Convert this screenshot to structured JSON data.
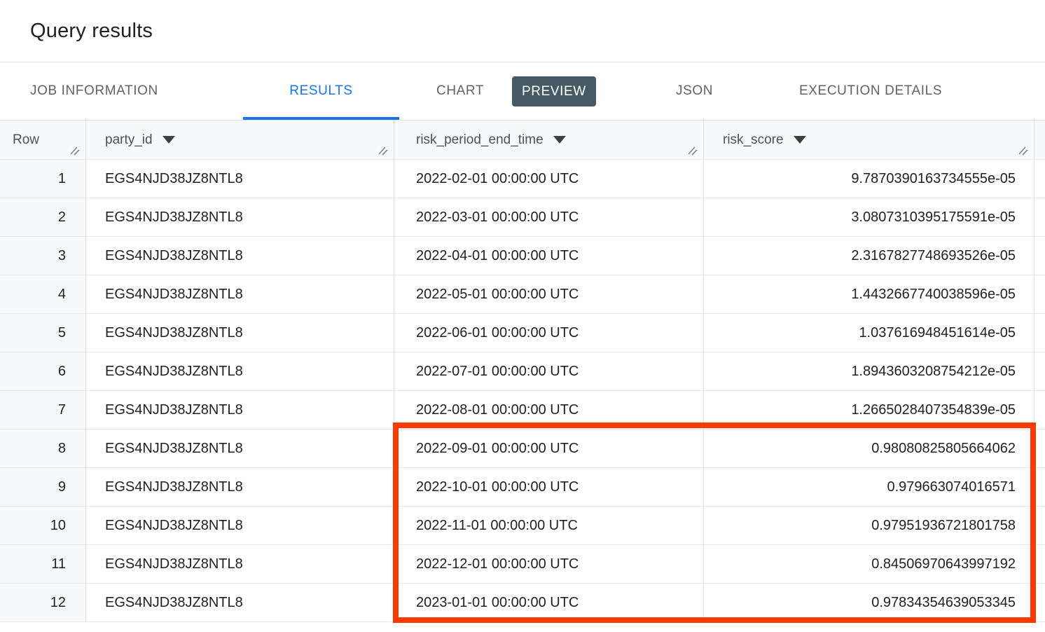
{
  "page": {
    "title": "Query results"
  },
  "tabs": [
    {
      "label": "JOB INFORMATION",
      "active": false
    },
    {
      "label": "RESULTS",
      "active": true
    },
    {
      "label": "CHART",
      "active": false,
      "badge": "PREVIEW"
    },
    {
      "label": "JSON",
      "active": false
    },
    {
      "label": "EXECUTION DETAILS",
      "active": false
    }
  ],
  "table": {
    "columns": [
      {
        "label": "Row",
        "sortable": false
      },
      {
        "label": "party_id",
        "sortable": true
      },
      {
        "label": "risk_period_end_time",
        "sortable": true
      },
      {
        "label": "risk_score",
        "sortable": true
      }
    ],
    "rows": [
      {
        "row": "1",
        "party_id": "EGS4NJD38JZ8NTL8",
        "risk_period_end_time": "2022-02-01 00:00:00 UTC",
        "risk_score": "9.7870390163734555e-05"
      },
      {
        "row": "2",
        "party_id": "EGS4NJD38JZ8NTL8",
        "risk_period_end_time": "2022-03-01 00:00:00 UTC",
        "risk_score": "3.0807310395175591e-05"
      },
      {
        "row": "3",
        "party_id": "EGS4NJD38JZ8NTL8",
        "risk_period_end_time": "2022-04-01 00:00:00 UTC",
        "risk_score": "2.3167827748693526e-05"
      },
      {
        "row": "4",
        "party_id": "EGS4NJD38JZ8NTL8",
        "risk_period_end_time": "2022-05-01 00:00:00 UTC",
        "risk_score": "1.4432667740038596e-05"
      },
      {
        "row": "5",
        "party_id": "EGS4NJD38JZ8NTL8",
        "risk_period_end_time": "2022-06-01 00:00:00 UTC",
        "risk_score": "1.037616948451614e-05"
      },
      {
        "row": "6",
        "party_id": "EGS4NJD38JZ8NTL8",
        "risk_period_end_time": "2022-07-01 00:00:00 UTC",
        "risk_score": "1.8943603208754212e-05"
      },
      {
        "row": "7",
        "party_id": "EGS4NJD38JZ8NTL8",
        "risk_period_end_time": "2022-08-01 00:00:00 UTC",
        "risk_score": "1.2665028407354839e-05"
      },
      {
        "row": "8",
        "party_id": "EGS4NJD38JZ8NTL8",
        "risk_period_end_time": "2022-09-01 00:00:00 UTC",
        "risk_score": "0.98080825805664062"
      },
      {
        "row": "9",
        "party_id": "EGS4NJD38JZ8NTL8",
        "risk_period_end_time": "2022-10-01 00:00:00 UTC",
        "risk_score": "0.979663074016571"
      },
      {
        "row": "10",
        "party_id": "EGS4NJD38JZ8NTL8",
        "risk_period_end_time": "2022-11-01 00:00:00 UTC",
        "risk_score": "0.97951936721801758"
      },
      {
        "row": "11",
        "party_id": "EGS4NJD38JZ8NTL8",
        "risk_period_end_time": "2022-12-01 00:00:00 UTC",
        "risk_score": "0.84506970643997192"
      },
      {
        "row": "12",
        "party_id": "EGS4NJD38JZ8NTL8",
        "risk_period_end_time": "2023-01-01 00:00:00 UTC",
        "risk_score": "0.97834354639053345"
      }
    ]
  },
  "annotation": {
    "color": "#fa3b00",
    "highlighted_rows": "8-12",
    "highlighted_columns": [
      "risk_period_end_time",
      "risk_score"
    ]
  },
  "colors": {
    "active_tab": "#1a73e8",
    "inactive_tab": "#5f6368",
    "badge_background": "#455a64",
    "header_background": "#f8f9fa",
    "border": "#e0e0e0",
    "text": "#202124"
  }
}
